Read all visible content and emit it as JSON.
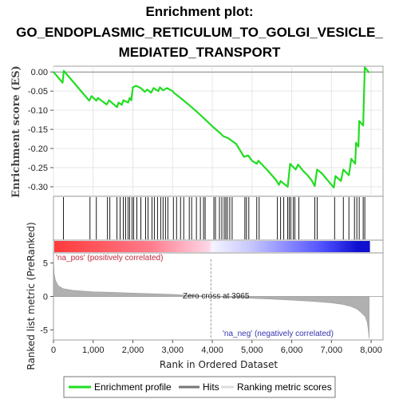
{
  "title_line1": "Enrichment plot:",
  "title_line2": "GO_ENDOPLASMIC_RETICULUM_TO_GOLGI_VESICLE_",
  "title_line3": "MEDIATED_TRANSPORT",
  "chart_data": {
    "type": "line",
    "es_ylabel": "Enrichment score (ES)",
    "metric_ylabel": "Ranked list metric (PreRanked)",
    "xlabel": "Rank in Ordered Dataset",
    "x_ticks": [
      "0",
      "1,000",
      "2,000",
      "3,000",
      "4,000",
      "5,000",
      "6,000",
      "7,000",
      "8,000"
    ],
    "es_ticks": [
      "0.00",
      "-0.05",
      "-0.10",
      "-0.15",
      "-0.20",
      "-0.25",
      "-0.30"
    ],
    "metric_ticks": [
      "5",
      "0",
      "-5"
    ],
    "xlim": [
      0,
      8300
    ],
    "es_ylim": [
      -0.325,
      0.015
    ],
    "metric_ylim": [
      -6.5,
      6.5
    ],
    "pos_label": "'na_pos' (positively correlated)",
    "neg_label": "'na_neg' (negatively correlated)",
    "zero_cross_label": "Zero cross at 3965",
    "zero_cross": 3965,
    "n_genes": 7950,
    "colors": {
      "es_line": "#22dd22",
      "hits": "#000000",
      "metric": "#b0b0b0",
      "pos": "#ff3030",
      "neg": "#2020ff"
    },
    "enrichment_profile": [
      [
        0,
        0.0
      ],
      [
        230,
        -0.028
      ],
      [
        260,
        0.003
      ],
      [
        900,
        -0.075
      ],
      [
        960,
        -0.063
      ],
      [
        1080,
        -0.075
      ],
      [
        1120,
        -0.068
      ],
      [
        1340,
        -0.085
      ],
      [
        1400,
        -0.074
      ],
      [
        1600,
        -0.092
      ],
      [
        1640,
        -0.08
      ],
      [
        1720,
        -0.086
      ],
      [
        1760,
        -0.074
      ],
      [
        1880,
        -0.08
      ],
      [
        1920,
        -0.068
      ],
      [
        1960,
        -0.074
      ],
      [
        2000,
        -0.04
      ],
      [
        2080,
        -0.036
      ],
      [
        2200,
        -0.042
      ],
      [
        2260,
        -0.048
      ],
      [
        2300,
        -0.052
      ],
      [
        2360,
        -0.046
      ],
      [
        2460,
        -0.054
      ],
      [
        2520,
        -0.042
      ],
      [
        2640,
        -0.05
      ],
      [
        2680,
        -0.04
      ],
      [
        2760,
        -0.048
      ],
      [
        2860,
        -0.042
      ],
      [
        3000,
        -0.05
      ],
      [
        3040,
        -0.055
      ],
      [
        3200,
        -0.068
      ],
      [
        3400,
        -0.085
      ],
      [
        3600,
        -0.103
      ],
      [
        3800,
        -0.122
      ],
      [
        4000,
        -0.142
      ],
      [
        4200,
        -0.16
      ],
      [
        4280,
        -0.168
      ],
      [
        4400,
        -0.173
      ],
      [
        4600,
        -0.188
      ],
      [
        4800,
        -0.222
      ],
      [
        4900,
        -0.218
      ],
      [
        5000,
        -0.232
      ],
      [
        5120,
        -0.24
      ],
      [
        5160,
        -0.232
      ],
      [
        5400,
        -0.258
      ],
      [
        5600,
        -0.282
      ],
      [
        5680,
        -0.295
      ],
      [
        5720,
        -0.285
      ],
      [
        5800,
        -0.292
      ],
      [
        5900,
        -0.3
      ],
      [
        5960,
        -0.24
      ],
      [
        6100,
        -0.255
      ],
      [
        6160,
        -0.242
      ],
      [
        6300,
        -0.26
      ],
      [
        6400,
        -0.27
      ],
      [
        6500,
        -0.283
      ],
      [
        6580,
        -0.298
      ],
      [
        6640,
        -0.255
      ],
      [
        6760,
        -0.265
      ],
      [
        6920,
        -0.285
      ],
      [
        7060,
        -0.302
      ],
      [
        7100,
        -0.272
      ],
      [
        7240,
        -0.285
      ],
      [
        7300,
        -0.255
      ],
      [
        7440,
        -0.27
      ],
      [
        7500,
        -0.227
      ],
      [
        7600,
        -0.24
      ],
      [
        7620,
        -0.185
      ],
      [
        7680,
        -0.195
      ],
      [
        7700,
        -0.128
      ],
      [
        7800,
        -0.14
      ],
      [
        7820,
        -0.062
      ],
      [
        7840,
        0.012
      ],
      [
        7920,
        0.002
      ],
      [
        7950,
        -0.002
      ]
    ],
    "hit_positions": [
      250,
      920,
      1080,
      1360,
      1420,
      1600,
      1680,
      1760,
      1820,
      1880,
      1920,
      1980,
      2020,
      2100,
      2200,
      2320,
      2380,
      2480,
      2540,
      2620,
      2700,
      2760,
      2820,
      2880,
      3020,
      3100,
      3200,
      3280,
      3420,
      3480,
      3600,
      3700,
      3780,
      3820,
      4040,
      4080,
      4180,
      4240,
      4300,
      4340,
      4380,
      4440,
      4500,
      4820,
      4860,
      4920,
      5120,
      5180,
      5640,
      5720,
      5800,
      5900,
      5940,
      5980,
      6040,
      6080,
      6180,
      6580,
      6640,
      7080,
      7300,
      7440,
      7580,
      7640,
      7700,
      7800,
      7840
    ],
    "metric_profile": [
      [
        0,
        6.0
      ],
      [
        15,
        3.5
      ],
      [
        50,
        2.4
      ],
      [
        120,
        1.6
      ],
      [
        250,
        1.15
      ],
      [
        500,
        0.9
      ],
      [
        1000,
        0.7
      ],
      [
        2000,
        0.5
      ],
      [
        3000,
        0.3
      ],
      [
        3600,
        0.12
      ],
      [
        3965,
        0.0
      ],
      [
        4500,
        -0.15
      ],
      [
        5000,
        -0.28
      ],
      [
        5500,
        -0.4
      ],
      [
        6000,
        -0.55
      ],
      [
        6500,
        -0.72
      ],
      [
        7000,
        -0.95
      ],
      [
        7300,
        -1.2
      ],
      [
        7500,
        -1.5
      ],
      [
        7650,
        -1.9
      ],
      [
        7750,
        -2.4
      ],
      [
        7850,
        -3.0
      ],
      [
        7900,
        -3.8
      ],
      [
        7930,
        -5.0
      ],
      [
        7950,
        -6.3
      ]
    ]
  },
  "legend": {
    "items": [
      {
        "label": "Enrichment profile",
        "color": "#22dd22",
        "icon": "green-line"
      },
      {
        "label": "Hits",
        "color": "#000000",
        "icon": "gray-line"
      },
      {
        "label": "Ranking metric scores",
        "color": "#c8c8c8",
        "icon": "light-gray-line"
      }
    ]
  }
}
